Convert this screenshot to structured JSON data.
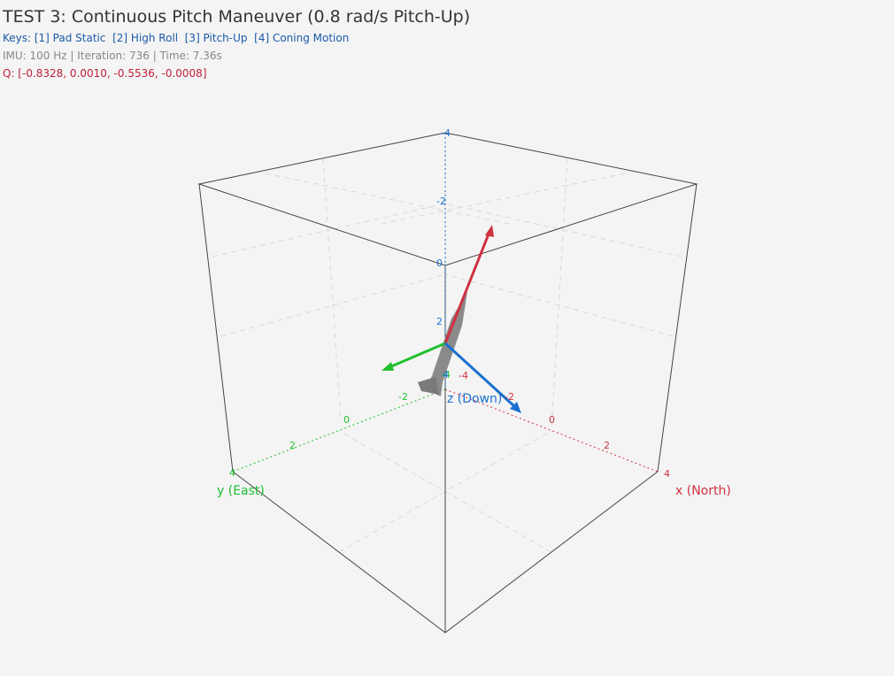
{
  "header": {
    "title": "TEST 3: Continuous Pitch Maneuver (0.8 rad/s Pitch-Up)",
    "keys": "Keys: [1] Pad Static  [2] High Roll  [3] Pitch-Up  [4] Coning Motion",
    "status": "IMU: 100 Hz | Iteration: 736 | Time: 7.36s",
    "quaternion": "Q: [-0.8328, 0.0010, -0.5536, -0.0008]"
  },
  "axes": {
    "x": {
      "label": "x (North)",
      "ticks": [
        "-4",
        "-2",
        "0",
        "2",
        "4"
      ]
    },
    "y": {
      "label": "y (East)",
      "ticks": [
        "-4",
        "-2",
        "0",
        "2",
        "4"
      ]
    },
    "z": {
      "label": "z (Down)",
      "ticks": [
        "-4",
        "-2",
        "0",
        "2",
        "4"
      ]
    }
  }
}
